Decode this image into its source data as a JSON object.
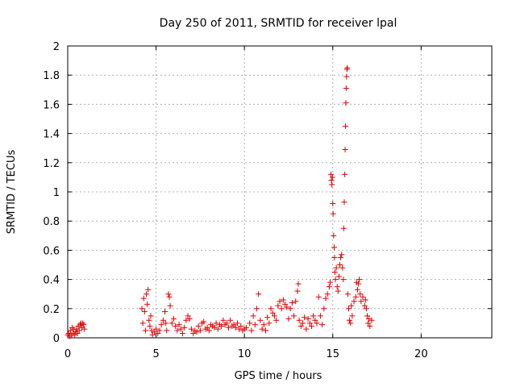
{
  "chart_data": {
    "type": "scatter",
    "title": "Day 250 of 2011, SRMTID for receiver lpal",
    "xlabel": "GPS time / hours",
    "ylabel": "SRMTID / TECUs",
    "xlim": [
      0,
      24
    ],
    "ylim": [
      0,
      2
    ],
    "xticks": [
      0,
      5,
      10,
      15,
      20
    ],
    "xtick_labels": [
      "0",
      "5",
      "10",
      "15",
      "20"
    ],
    "yticks": [
      0,
      0.2,
      0.4,
      0.6,
      0.8,
      1,
      1.2,
      1.4,
      1.6,
      1.8,
      2
    ],
    "ytick_labels": [
      "0",
      "0.2",
      "0.4",
      "0.6",
      "0.8",
      "1",
      "1.2",
      "1.4",
      "1.6",
      "1.8",
      "2"
    ],
    "grid": true,
    "marker": "+",
    "marker_color": "#e00000",
    "series": [
      {
        "name": "SRMTID",
        "points": [
          [
            0.0,
            0.02
          ],
          [
            0.05,
            0.03
          ],
          [
            0.1,
            0.01
          ],
          [
            0.15,
            0.05
          ],
          [
            0.2,
            0.02
          ],
          [
            0.25,
            0.07
          ],
          [
            0.3,
            0.03
          ],
          [
            0.35,
            0.06
          ],
          [
            0.4,
            0.02
          ],
          [
            0.45,
            0.04
          ],
          [
            0.5,
            0.06
          ],
          [
            0.55,
            0.03
          ],
          [
            0.6,
            0.08
          ],
          [
            0.65,
            0.05
          ],
          [
            0.7,
            0.09
          ],
          [
            0.75,
            0.1
          ],
          [
            0.8,
            0.07
          ],
          [
            0.85,
            0.1
          ],
          [
            0.9,
            0.09
          ],
          [
            0.95,
            0.06
          ],
          [
            4.2,
            0.2
          ],
          [
            4.25,
            0.1
          ],
          [
            4.3,
            0.27
          ],
          [
            4.35,
            0.18
          ],
          [
            4.4,
            0.05
          ],
          [
            4.45,
            0.3
          ],
          [
            4.5,
            0.23
          ],
          [
            4.55,
            0.33
          ],
          [
            4.6,
            0.12
          ],
          [
            4.65,
            0.08
          ],
          [
            4.7,
            0.15
          ],
          [
            4.75,
            0.05
          ],
          [
            4.8,
            0.02
          ],
          [
            4.9,
            0.04
          ],
          [
            5.0,
            0.06
          ],
          [
            5.1,
            0.03
          ],
          [
            5.2,
            0.05
          ],
          [
            5.3,
            0.09
          ],
          [
            5.4,
            0.12
          ],
          [
            5.5,
            0.18
          ],
          [
            5.55,
            0.1
          ],
          [
            5.6,
            0.05
          ],
          [
            5.7,
            0.3
          ],
          [
            5.75,
            0.28
          ],
          [
            5.8,
            0.22
          ],
          [
            5.9,
            0.1
          ],
          [
            6.0,
            0.13
          ],
          [
            6.1,
            0.08
          ],
          [
            6.2,
            0.05
          ],
          [
            6.3,
            0.09
          ],
          [
            6.4,
            0.06
          ],
          [
            6.5,
            0.03
          ],
          [
            6.6,
            0.07
          ],
          [
            6.7,
            0.12
          ],
          [
            6.8,
            0.15
          ],
          [
            6.9,
            0.13
          ],
          [
            7.0,
            0.06
          ],
          [
            7.1,
            0.03
          ],
          [
            7.2,
            0.05
          ],
          [
            7.3,
            0.04
          ],
          [
            7.4,
            0.08
          ],
          [
            7.5,
            0.05
          ],
          [
            7.6,
            0.1
          ],
          [
            7.7,
            0.11
          ],
          [
            7.8,
            0.06
          ],
          [
            7.9,
            0.07
          ],
          [
            8.0,
            0.05
          ],
          [
            8.1,
            0.09
          ],
          [
            8.2,
            0.08
          ],
          [
            8.3,
            0.07
          ],
          [
            8.4,
            0.1
          ],
          [
            8.5,
            0.06
          ],
          [
            8.6,
            0.09
          ],
          [
            8.7,
            0.08
          ],
          [
            8.8,
            0.12
          ],
          [
            8.9,
            0.09
          ],
          [
            9.0,
            0.1
          ],
          [
            9.1,
            0.07
          ],
          [
            9.2,
            0.12
          ],
          [
            9.3,
            0.08
          ],
          [
            9.4,
            0.09
          ],
          [
            9.5,
            0.07
          ],
          [
            9.6,
            0.1
          ],
          [
            9.7,
            0.06
          ],
          [
            9.8,
            0.08
          ],
          [
            9.9,
            0.05
          ],
          [
            10.0,
            0.06
          ],
          [
            10.1,
            0.07
          ],
          [
            10.3,
            0.1
          ],
          [
            10.4,
            0.05
          ],
          [
            10.5,
            0.15
          ],
          [
            10.6,
            0.09
          ],
          [
            10.7,
            0.2
          ],
          [
            10.8,
            0.3
          ],
          [
            10.9,
            0.12
          ],
          [
            11.0,
            0.06
          ],
          [
            11.1,
            0.09
          ],
          [
            11.2,
            0.05
          ],
          [
            11.3,
            0.14
          ],
          [
            11.4,
            0.1
          ],
          [
            11.5,
            0.2
          ],
          [
            11.6,
            0.17
          ],
          [
            11.7,
            0.15
          ],
          [
            11.8,
            0.12
          ],
          [
            11.9,
            0.22
          ],
          [
            12.0,
            0.25
          ],
          [
            12.1,
            0.2
          ],
          [
            12.2,
            0.26
          ],
          [
            12.3,
            0.23
          ],
          [
            12.4,
            0.21
          ],
          [
            12.5,
            0.13
          ],
          [
            12.6,
            0.2
          ],
          [
            12.7,
            0.24
          ],
          [
            12.8,
            0.15
          ],
          [
            12.9,
            0.25
          ],
          [
            13.0,
            0.32
          ],
          [
            13.05,
            0.37
          ],
          [
            13.1,
            0.12
          ],
          [
            13.2,
            0.08
          ],
          [
            13.3,
            0.1
          ],
          [
            13.4,
            0.14
          ],
          [
            13.5,
            0.06
          ],
          [
            13.6,
            0.13
          ],
          [
            13.7,
            0.1
          ],
          [
            13.8,
            0.08
          ],
          [
            13.9,
            0.15
          ],
          [
            14.0,
            0.12
          ],
          [
            14.1,
            0.1
          ],
          [
            14.2,
            0.28
          ],
          [
            14.3,
            0.15
          ],
          [
            14.4,
            0.09
          ],
          [
            14.5,
            0.2
          ],
          [
            14.6,
            0.27
          ],
          [
            14.7,
            0.3
          ],
          [
            14.8,
            0.35
          ],
          [
            14.85,
            0.38
          ],
          [
            14.9,
            1.12
          ],
          [
            14.92,
            1.08
          ],
          [
            14.95,
            1.05
          ],
          [
            14.98,
            1.1
          ],
          [
            15.0,
            0.92
          ],
          [
            15.02,
            0.85
          ],
          [
            15.05,
            0.7
          ],
          [
            15.08,
            0.62
          ],
          [
            15.1,
            0.55
          ],
          [
            15.12,
            0.45
          ],
          [
            15.15,
            0.4
          ],
          [
            15.2,
            0.48
          ],
          [
            15.25,
            0.35
          ],
          [
            15.3,
            0.32
          ],
          [
            15.35,
            0.42
          ],
          [
            15.4,
            0.5
          ],
          [
            15.45,
            0.55
          ],
          [
            15.5,
            0.57
          ],
          [
            15.55,
            0.48
          ],
          [
            15.6,
            0.4
          ],
          [
            15.62,
            0.75
          ],
          [
            15.65,
            0.93
          ],
          [
            15.68,
            1.12
          ],
          [
            15.7,
            1.29
          ],
          [
            15.72,
            1.45
          ],
          [
            15.74,
            1.61
          ],
          [
            15.76,
            1.71
          ],
          [
            15.78,
            1.79
          ],
          [
            15.8,
            1.84
          ],
          [
            15.82,
            1.85
          ],
          [
            15.85,
            0.3
          ],
          [
            15.9,
            0.2
          ],
          [
            15.95,
            0.12
          ],
          [
            16.0,
            0.1
          ],
          [
            16.05,
            0.22
          ],
          [
            16.1,
            0.15
          ],
          [
            16.2,
            0.25
          ],
          [
            16.3,
            0.28
          ],
          [
            16.35,
            0.38
          ],
          [
            16.4,
            0.33
          ],
          [
            16.45,
            0.37
          ],
          [
            16.5,
            0.4
          ],
          [
            16.55,
            0.3
          ],
          [
            16.6,
            0.25
          ],
          [
            16.7,
            0.28
          ],
          [
            16.8,
            0.22
          ],
          [
            16.85,
            0.26
          ],
          [
            16.9,
            0.2
          ],
          [
            16.95,
            0.15
          ],
          [
            17.0,
            0.1
          ],
          [
            17.05,
            0.13
          ],
          [
            17.1,
            0.08
          ],
          [
            17.2,
            0.12
          ]
        ]
      }
    ]
  }
}
